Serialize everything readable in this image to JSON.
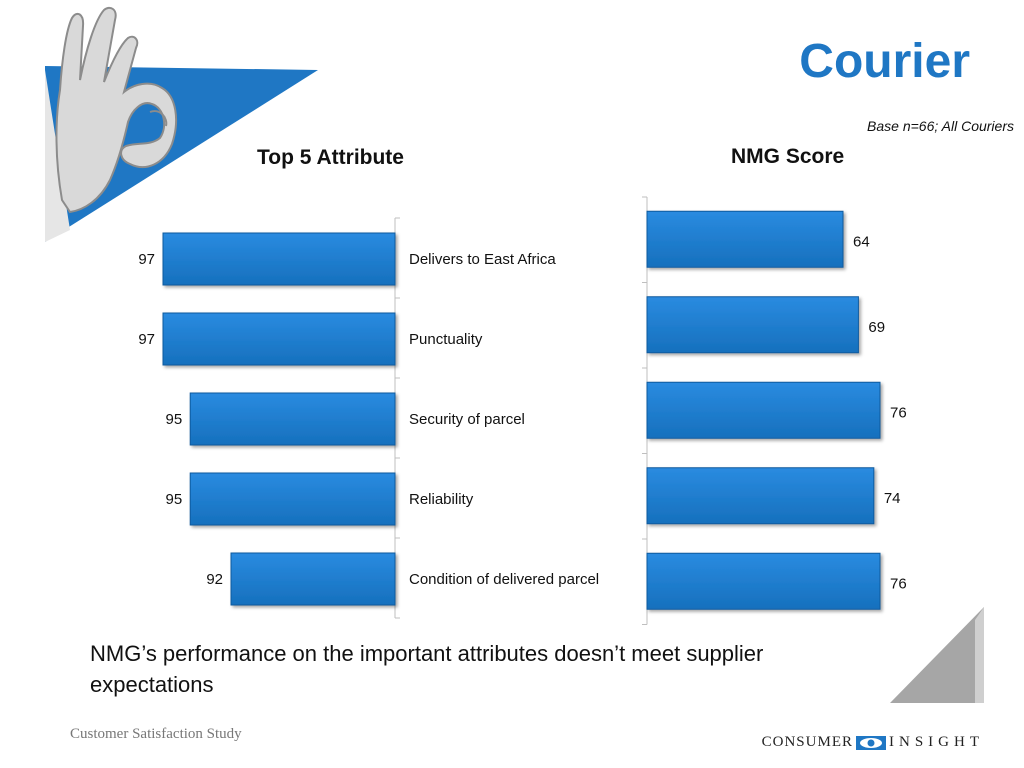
{
  "title": "Courier",
  "base_note": "Base n=66; All Couriers",
  "conclusion": "NMG’s performance on the important attributes doesn’t meet supplier expectations",
  "footer": "Customer Satisfaction Study",
  "logo": {
    "word1": "CONSUMER",
    "word2": "INSIGHT",
    "icon": "eye-icon"
  },
  "colors": {
    "bar": "#1f7fd0",
    "bar_edge": "#0f5a9e",
    "title": "#1f77c4"
  },
  "chart_data": [
    {
      "type": "bar",
      "title": "Top 5 Attribute",
      "categories": [
        "Delivers to East Africa",
        "Punctuality",
        "Security of parcel",
        "Reliability",
        "Condition of delivered parcel"
      ],
      "values": [
        97,
        97,
        95,
        95,
        92
      ]
    },
    {
      "type": "bar",
      "title": "NMG Score",
      "categories": [
        "Delivers to East Africa",
        "Punctuality",
        "Security of parcel",
        "Reliability",
        "Condition of delivered parcel"
      ],
      "values": [
        64,
        69,
        76,
        74,
        76
      ]
    }
  ]
}
